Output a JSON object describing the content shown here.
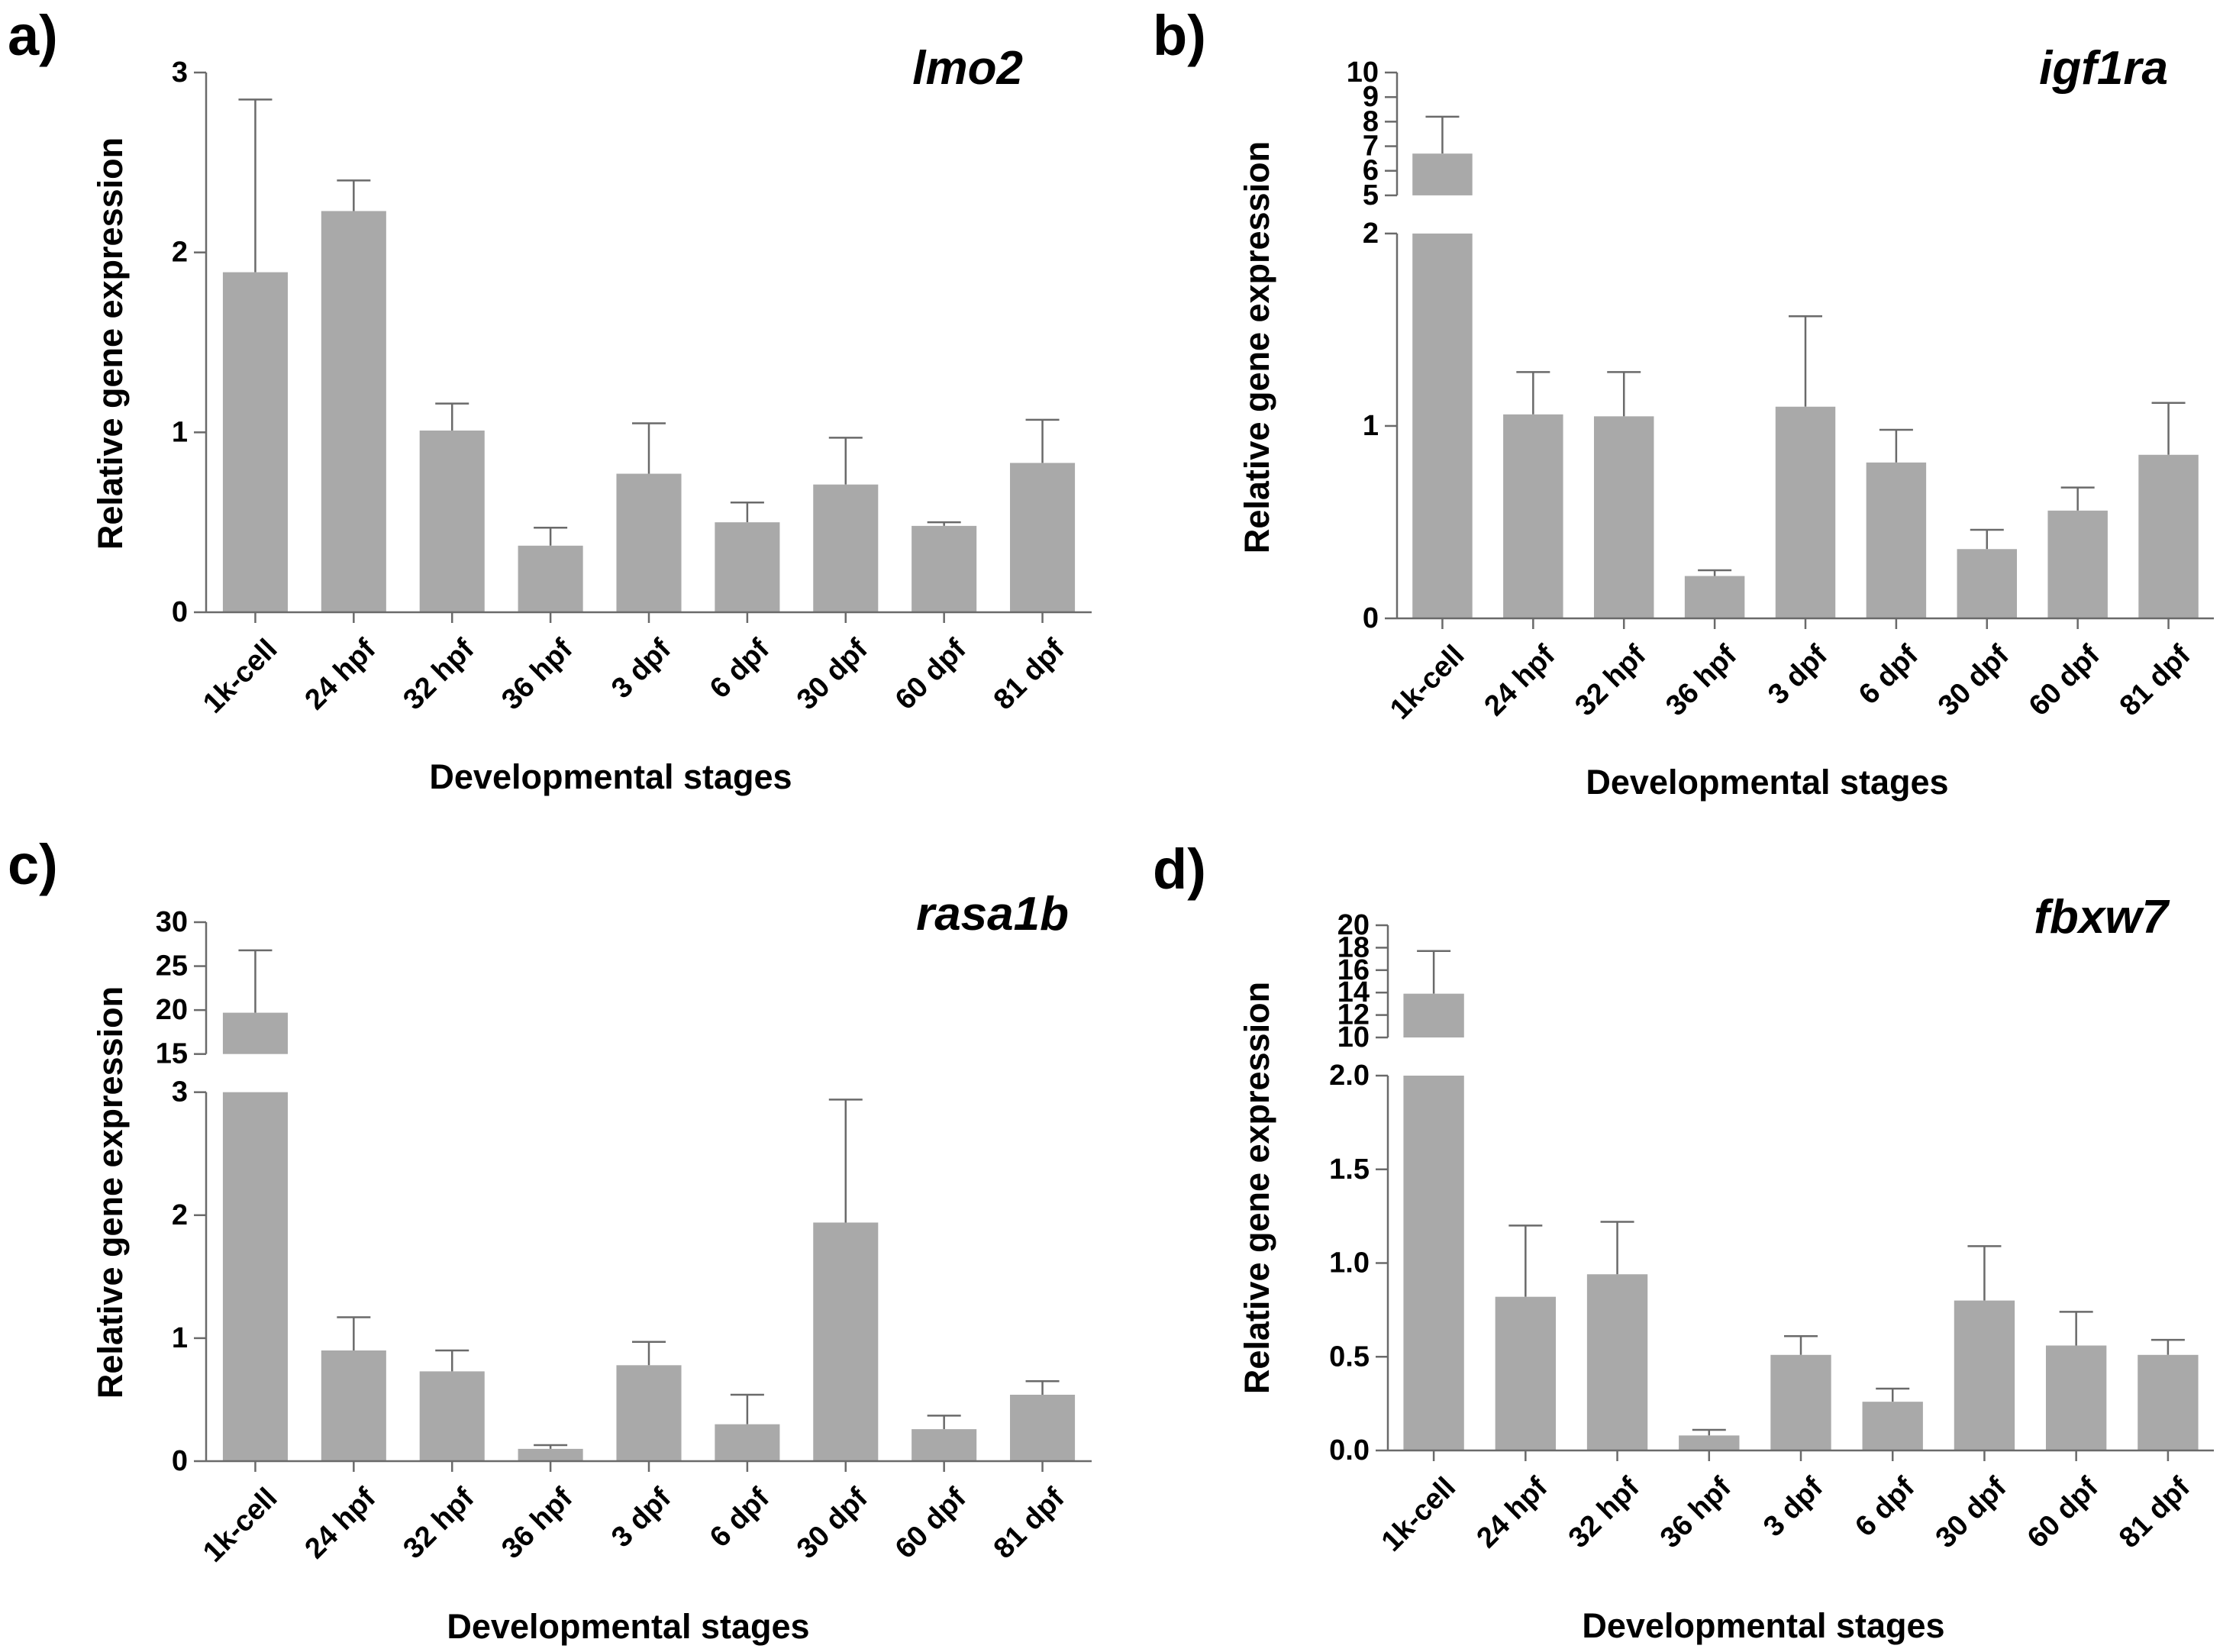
{
  "figure": {
    "colors": {
      "bar": "#a9a9a9",
      "axis": "#6a6a6a",
      "text": "#000000"
    }
  },
  "chart_data": [
    {
      "panel": "a)",
      "type": "bar",
      "title": "lmo2",
      "xlabel": "Developmental stages",
      "ylabel": "Relative gene expression",
      "categories": [
        "1k-cell",
        "24 hpf",
        "32 hpf",
        "36 hpf",
        "3 dpf",
        "6 dpf",
        "30 dpf",
        "60 dpf",
        "81 dpf"
      ],
      "values": [
        1.89,
        2.23,
        1.01,
        0.37,
        0.77,
        0.5,
        0.71,
        0.48,
        0.83
      ],
      "errors": [
        0.96,
        0.17,
        0.15,
        0.1,
        0.28,
        0.11,
        0.26,
        0.02,
        0.24
      ],
      "ylim": [
        0,
        3
      ],
      "yticks": [
        "0",
        "1",
        "2",
        "3"
      ],
      "grid": false,
      "legend": "none"
    },
    {
      "panel": "b)",
      "type": "bar",
      "title": "igf1ra",
      "xlabel": "Developmental stages",
      "ylabel": "Relative gene expression",
      "categories": [
        "1k-cell",
        "24 hpf",
        "32 hpf",
        "36 hpf",
        "3 dpf",
        "6 dpf",
        "30 dpf",
        "60 dpf",
        "81 dpf"
      ],
      "values": [
        6.7,
        1.06,
        1.05,
        0.22,
        1.1,
        0.81,
        0.36,
        0.56,
        0.85
      ],
      "errors": [
        1.5,
        0.22,
        0.23,
        0.03,
        0.47,
        0.17,
        0.1,
        0.12,
        0.27
      ],
      "y_axis_break": {
        "lower": [
          0,
          2
        ],
        "upper": [
          5,
          10
        ]
      },
      "yticks_lower": [
        "0",
        "1",
        "2"
      ],
      "yticks_upper": [
        "5",
        "6",
        "7",
        "8",
        "9",
        "10"
      ],
      "grid": false,
      "legend": "none"
    },
    {
      "panel": "c)",
      "type": "bar",
      "title": "rasa1b",
      "xlabel": "Developmental stages",
      "ylabel": "Relative gene expression",
      "categories": [
        "1k-cell",
        "24 hpf",
        "32 hpf",
        "36 hpf",
        "3 dpf",
        "6 dpf",
        "30 dpf",
        "60 dpf",
        "81 dpf"
      ],
      "values": [
        19.7,
        0.9,
        0.73,
        0.1,
        0.78,
        0.3,
        1.94,
        0.26,
        0.54
      ],
      "errors": [
        7.1,
        0.27,
        0.17,
        0.03,
        0.19,
        0.24,
        1.0,
        0.11,
        0.11
      ],
      "y_axis_break": {
        "lower": [
          0,
          3
        ],
        "upper": [
          15,
          30
        ]
      },
      "yticks_lower": [
        "0",
        "1",
        "2",
        "3"
      ],
      "yticks_upper": [
        "15",
        "20",
        "25",
        "30"
      ],
      "grid": false,
      "legend": "none"
    },
    {
      "panel": "d)",
      "type": "bar",
      "title": "fbxw7",
      "xlabel": "Developmental stages",
      "ylabel": "Relative gene expression",
      "categories": [
        "1k-cell",
        "24 hpf",
        "32 hpf",
        "36 hpf",
        "3 dpf",
        "6 dpf",
        "30 dpf",
        "60 dpf",
        "81 dpf"
      ],
      "values": [
        13.9,
        0.82,
        0.94,
        0.08,
        0.51,
        0.26,
        0.8,
        0.56,
        0.51
      ],
      "errors": [
        3.8,
        0.38,
        0.28,
        0.03,
        0.1,
        0.07,
        0.29,
        0.18,
        0.08
      ],
      "y_axis_break": {
        "lower": [
          0,
          2
        ],
        "upper": [
          10,
          20
        ]
      },
      "yticks_lower": [
        "0.0",
        "0.5",
        "1.0",
        "1.5",
        "2.0"
      ],
      "yticks_upper": [
        "10",
        "12",
        "14",
        "16",
        "18",
        "20"
      ],
      "grid": false,
      "legend": "none"
    }
  ]
}
